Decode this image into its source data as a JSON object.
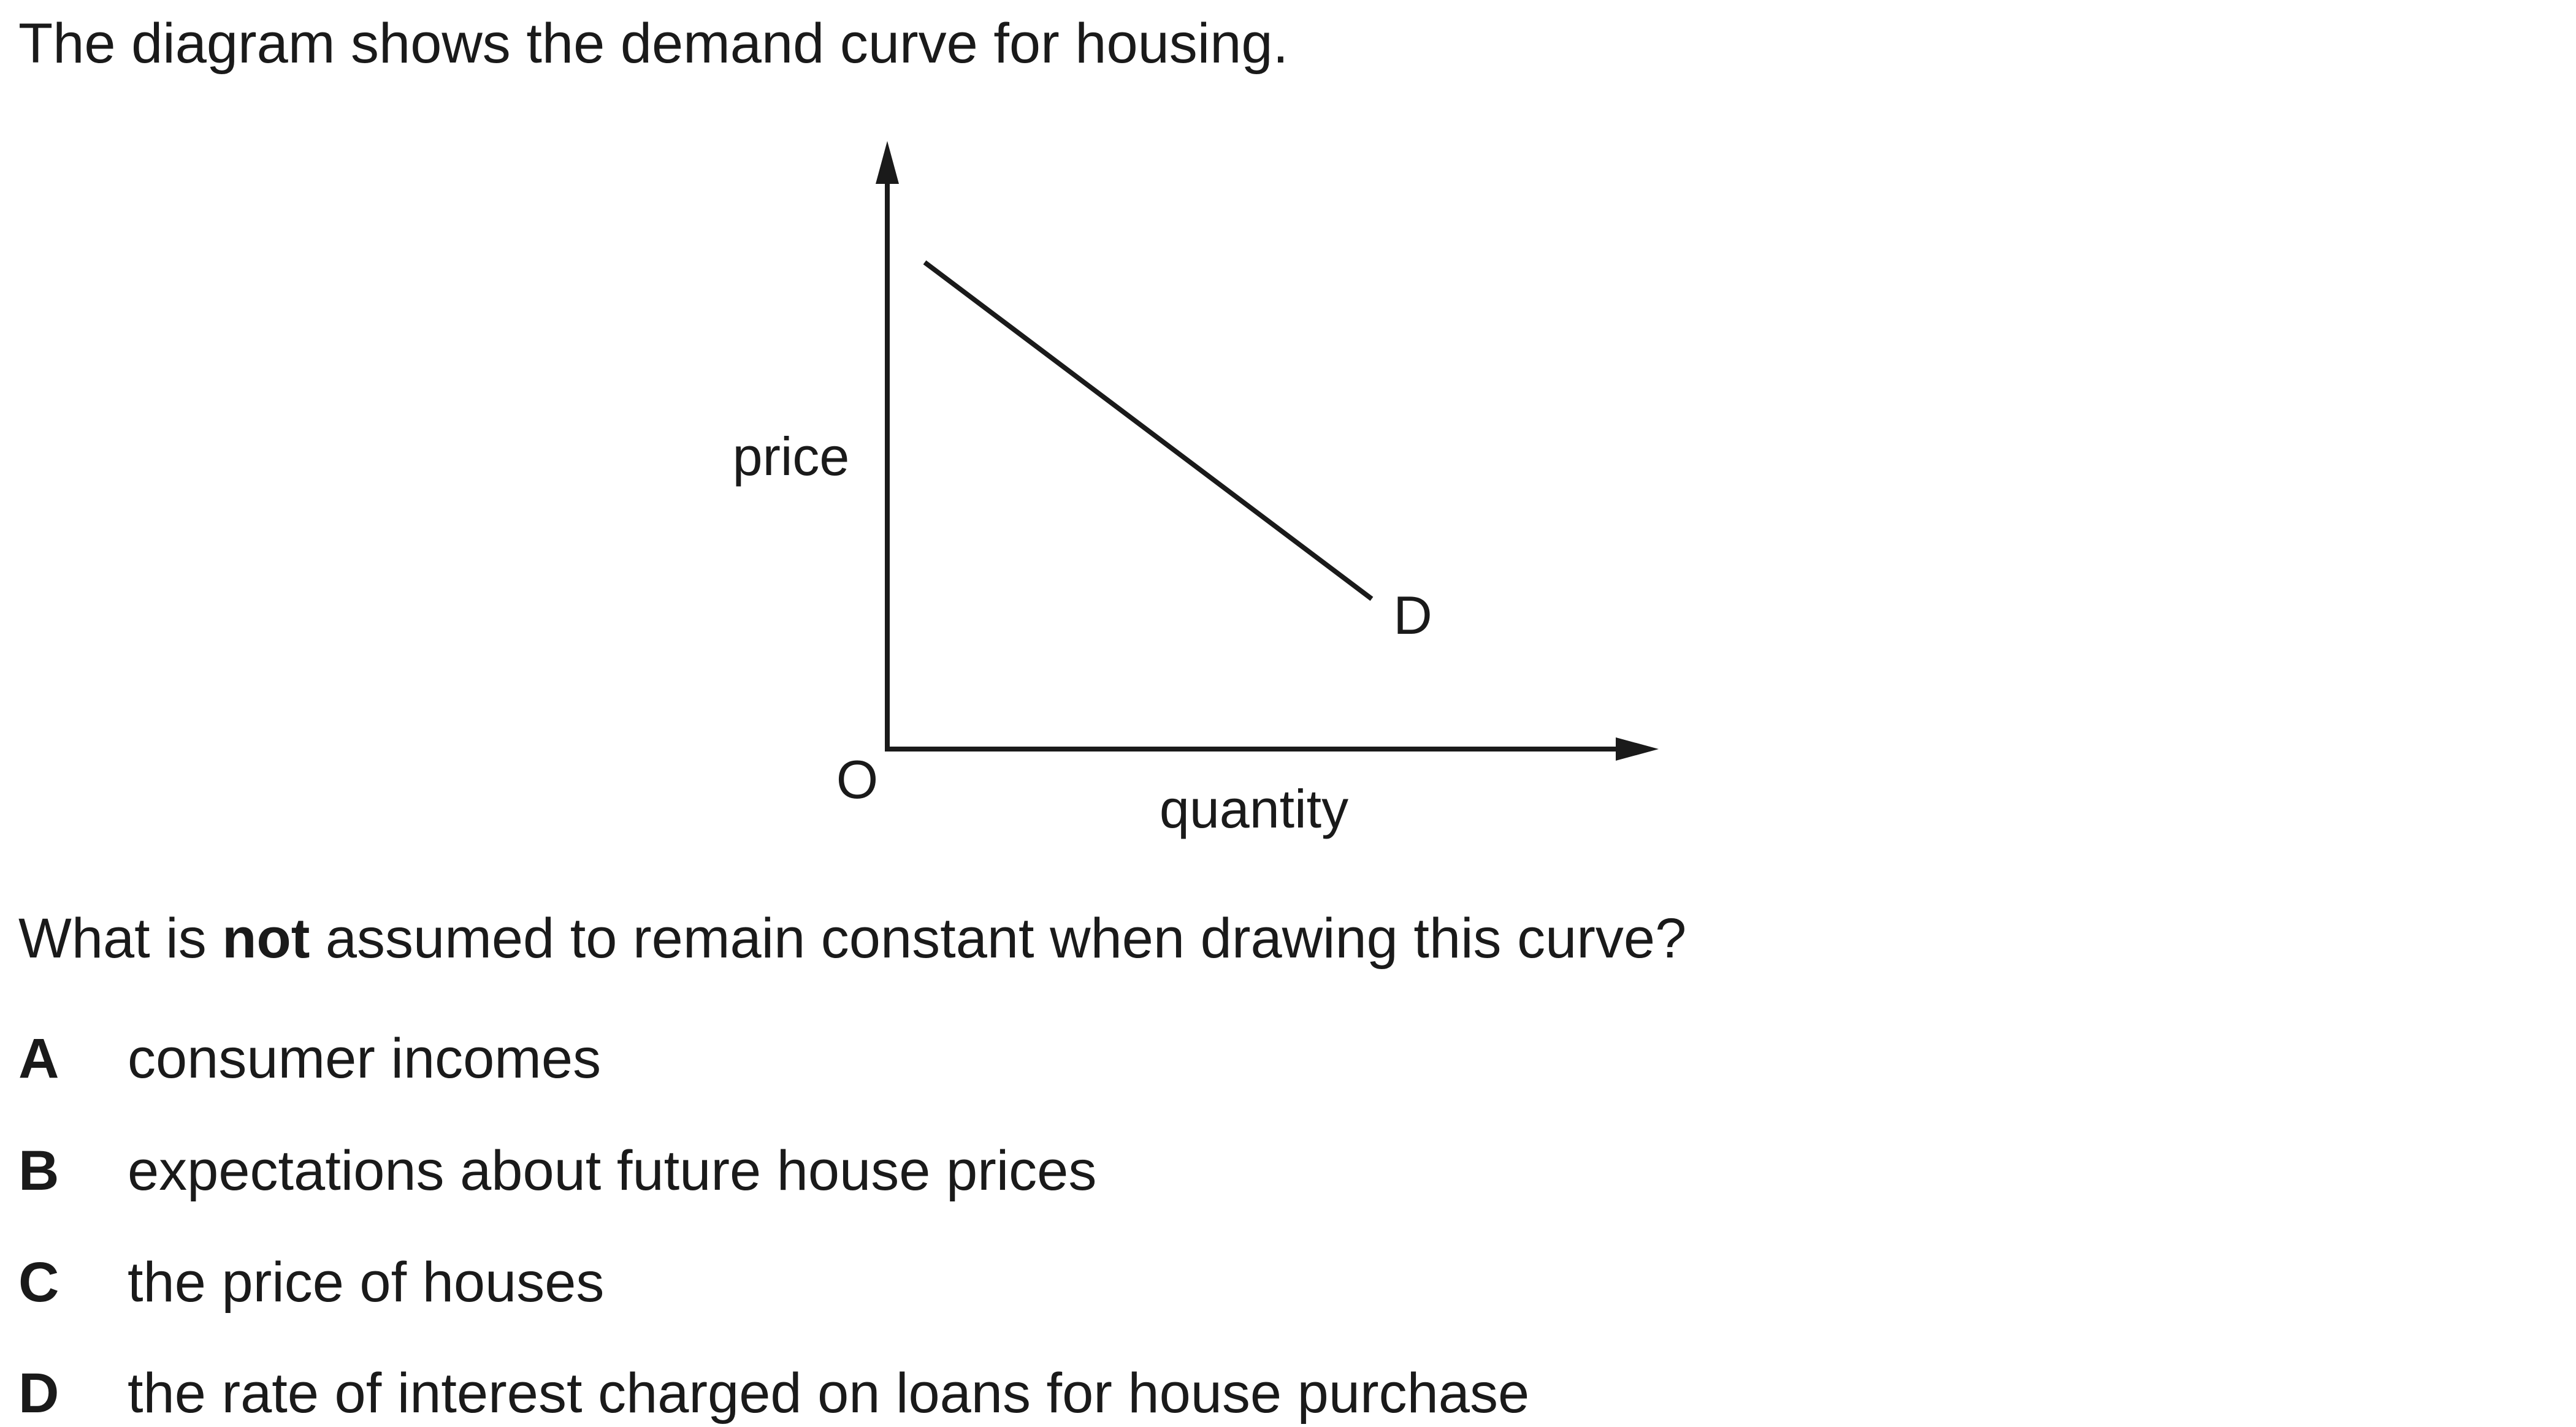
{
  "intro": "The diagram shows the demand curve for housing.",
  "diagram": {
    "y_axis_label": "price",
    "x_axis_label": "quantity",
    "origin_label": "O",
    "curve_label": "D"
  },
  "question": {
    "before": "What is ",
    "emphasis": "not",
    "after": " assumed to remain constant when drawing this curve?"
  },
  "options": [
    {
      "letter": "A",
      "text": "consumer incomes"
    },
    {
      "letter": "B",
      "text": "expectations about future house prices"
    },
    {
      "letter": "C",
      "text": "the price of houses"
    },
    {
      "letter": "D",
      "text": "the rate of interest charged on loans for house purchase"
    }
  ]
}
